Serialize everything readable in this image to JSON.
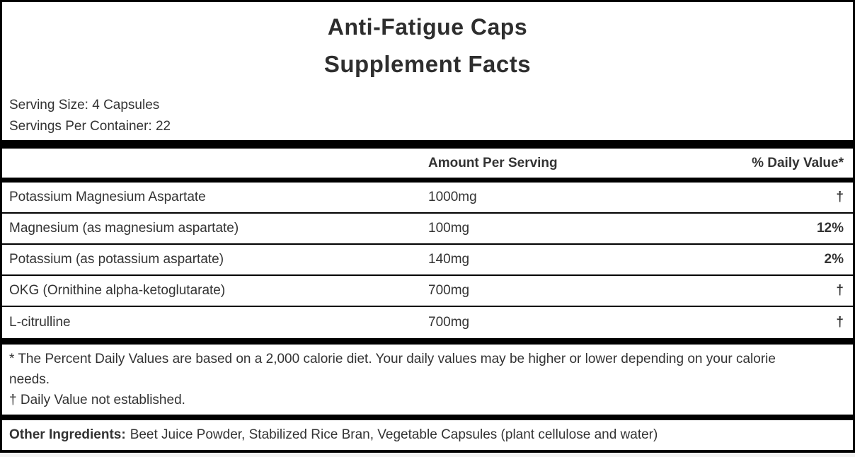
{
  "label": {
    "product_title": "Anti-Fatigue Caps",
    "facts_title": "Supplement Facts",
    "serving_size": "Serving Size: 4 Capsules",
    "servings_per_container": "Servings Per Container: 22",
    "columns": {
      "amount_header": "Amount Per Serving",
      "daily_value_header": "% Daily Value*"
    },
    "rows": [
      {
        "name": "Potassium Magnesium Aspartate",
        "amount": "1000mg",
        "dv": "†"
      },
      {
        "name": "Magnesium (as magnesium aspartate)",
        "amount": "100mg",
        "dv": "12%"
      },
      {
        "name": "Potassium (as potassium aspartate)",
        "amount": "140mg",
        "dv": "2%"
      },
      {
        "name": "OKG (Ornithine alpha-ketoglutarate)",
        "amount": "700mg",
        "dv": "†"
      },
      {
        "name": "L-citrulline",
        "amount": "700mg",
        "dv": "†"
      }
    ],
    "footnotes": {
      "percent_dv": "* The Percent Daily Values are based on a 2,000 calorie diet. Your daily values may be higher or lower depending on your calorie needs.",
      "dagger": "† Daily Value not established."
    },
    "other_ingredients": {
      "label": "Other Ingredients:",
      "text": "Beet Juice Powder, Stabilized Rice Bran, Vegetable Capsules (plant cellulose and water)"
    },
    "colors": {
      "text": "#333333",
      "title_text": "#2e2e2e",
      "rule": "#000000",
      "background": "#ffffff",
      "page_background": "#f2f2f2"
    }
  }
}
